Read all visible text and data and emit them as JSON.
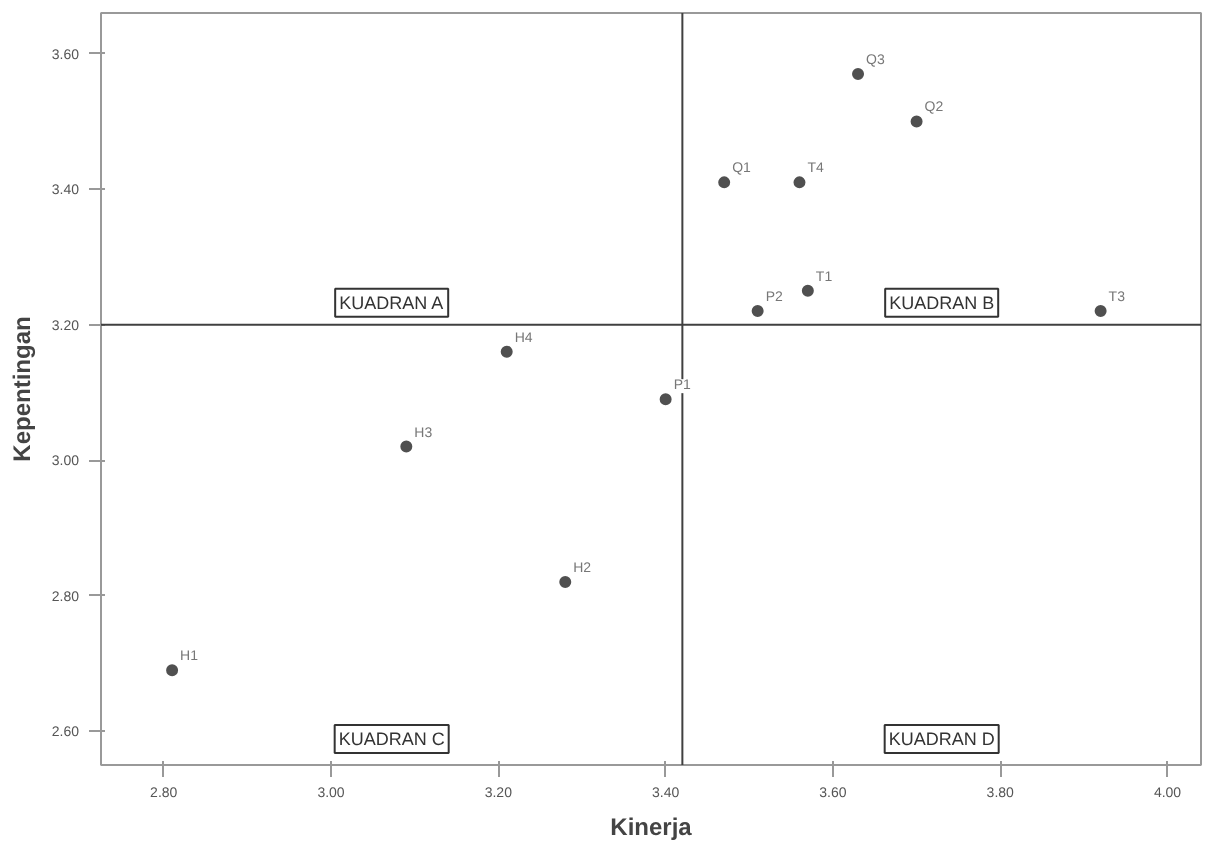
{
  "chart_data": {
    "type": "scatter",
    "xlabel": "Kinerja",
    "ylabel": "Kepentingan",
    "x": [
      2.81,
      3.09,
      3.21,
      3.28,
      3.4,
      3.47,
      3.51,
      3.56,
      3.57,
      3.63,
      3.7,
      3.92
    ],
    "series": [
      {
        "color": "#505050",
        "values": [
          2.69,
          3.02,
          3.16,
          2.82,
          3.09,
          3.41,
          3.22,
          3.41,
          3.25,
          3.57,
          3.5,
          3.22
        ]
      }
    ],
    "marker": "circle",
    "grid": false,
    "xlim": [
      2.725,
      4.04
    ],
    "ylim": [
      2.55,
      3.66
    ],
    "xticks": [
      {
        "value": 2.8,
        "label": "2.80"
      },
      {
        "value": 3.0,
        "label": "3.00"
      },
      {
        "value": 3.2,
        "label": "3.20"
      },
      {
        "value": 3.4,
        "label": "3.40"
      },
      {
        "value": 3.6,
        "label": "3.60"
      },
      {
        "value": 3.8,
        "label": "3.80"
      },
      {
        "value": 4.0,
        "label": "4.00"
      }
    ],
    "yticks": [
      {
        "value": 2.6,
        "label": "2.60"
      },
      {
        "value": 2.8,
        "label": "2.80"
      },
      {
        "value": 3.0,
        "label": "3.00"
      },
      {
        "value": 3.2,
        "label": "3.20"
      },
      {
        "value": 3.4,
        "label": "3.40"
      },
      {
        "value": 3.6,
        "label": "3.60"
      }
    ],
    "ref_lines": [
      {
        "axis": "x",
        "value": 3.42,
        "color": "#404040"
      },
      {
        "axis": "y",
        "value": 3.2,
        "color": "#404040"
      }
    ],
    "annotations": [
      {
        "text": "H1",
        "x": 2.81,
        "y": 2.69
      },
      {
        "text": "H3",
        "x": 3.09,
        "y": 3.02
      },
      {
        "text": "H4",
        "x": 3.21,
        "y": 3.16
      },
      {
        "text": "H2",
        "x": 3.28,
        "y": 2.82
      },
      {
        "text": "P1",
        "x": 3.4,
        "y": 3.09
      },
      {
        "text": "Q1",
        "x": 3.47,
        "y": 3.41
      },
      {
        "text": "P2",
        "x": 3.51,
        "y": 3.22
      },
      {
        "text": "T4",
        "x": 3.56,
        "y": 3.41
      },
      {
        "text": "T1",
        "x": 3.57,
        "y": 3.25
      },
      {
        "text": "Q3",
        "x": 3.63,
        "y": 3.57
      },
      {
        "text": "Q2",
        "x": 3.7,
        "y": 3.5
      },
      {
        "text": "T3",
        "x": 3.92,
        "y": 3.22
      },
      "KUADRAN A",
      "KUADRAN B",
      "KUADRAN C",
      "KUADRAN D"
    ]
  }
}
